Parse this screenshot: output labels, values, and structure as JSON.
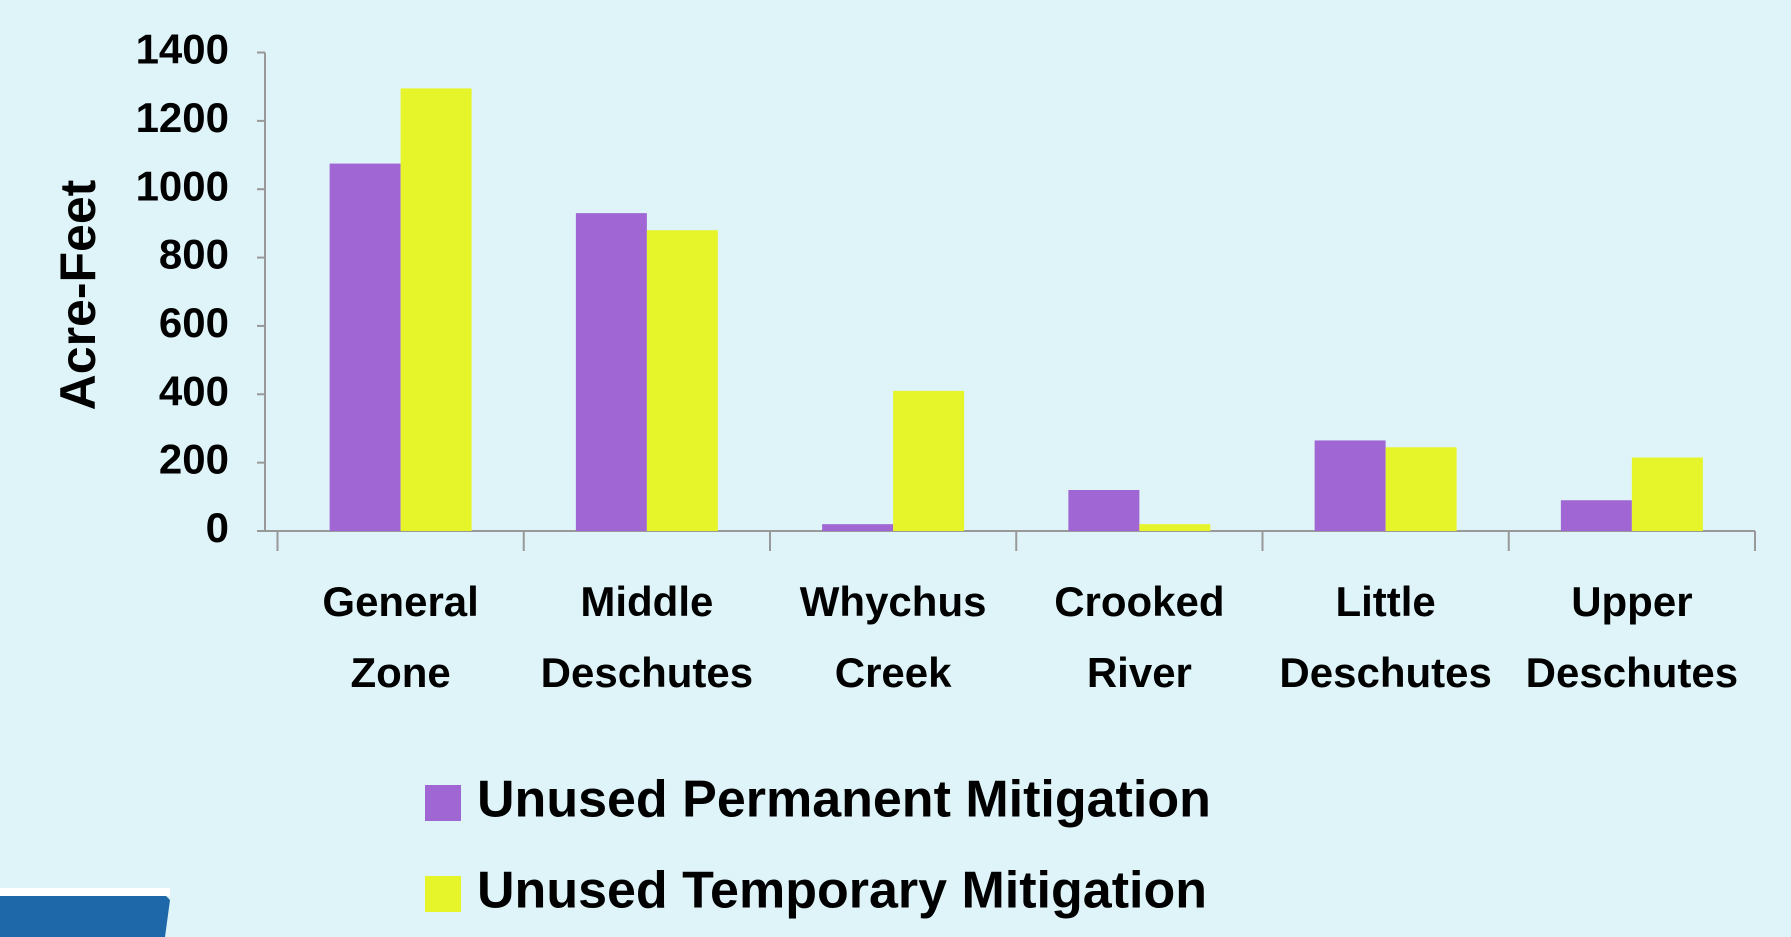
{
  "chart_data": {
    "type": "bar",
    "y_label": "Acre-Feet",
    "categories": [
      "General Zone",
      "Middle Deschutes",
      "Whychus Creek",
      "Crooked River",
      "Little Deschutes",
      "Upper Deschutes"
    ],
    "series": [
      {
        "name": "Unused Permanent Mitigation",
        "color": "#a066d3",
        "values": [
          1075,
          930,
          20,
          120,
          265,
          90
        ]
      },
      {
        "name": "Unused Temporary Mitigation",
        "color": "#e6f52a",
        "values": [
          1295,
          880,
          410,
          20,
          245,
          215
        ]
      }
    ],
    "ylim": [
      0,
      1400
    ],
    "yticks": [
      0,
      200,
      400,
      600,
      800,
      1000,
      1200,
      1400
    ],
    "grid": false
  }
}
